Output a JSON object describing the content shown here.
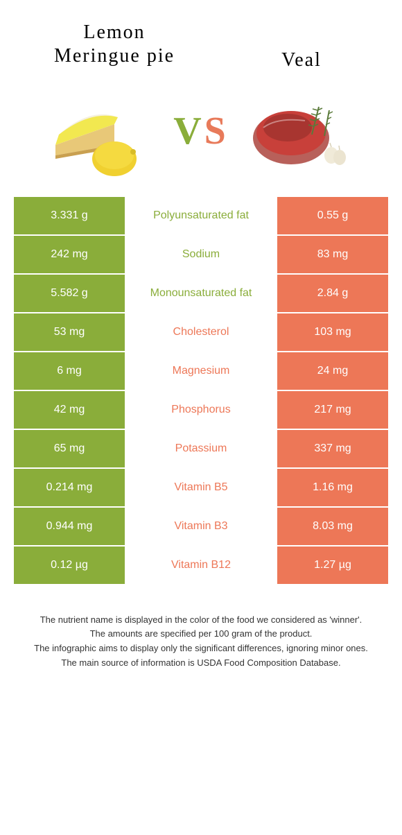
{
  "header": {
    "left_title": "Lemon Meringue pie",
    "right_title": "Veal",
    "vs_left": "V",
    "vs_right": "S"
  },
  "colors": {
    "left": "#8aad3a",
    "right": "#ed7757",
    "left_title": "#333333",
    "right_title": "#333333"
  },
  "rows": [
    {
      "left": "3.331 g",
      "label": "Polyunsaturated fat",
      "right": "0.55 g",
      "winner": "left"
    },
    {
      "left": "242 mg",
      "label": "Sodium",
      "right": "83 mg",
      "winner": "left"
    },
    {
      "left": "5.582 g",
      "label": "Monounsaturated fat",
      "right": "2.84 g",
      "winner": "left"
    },
    {
      "left": "53 mg",
      "label": "Cholesterol",
      "right": "103 mg",
      "winner": "right"
    },
    {
      "left": "6 mg",
      "label": "Magnesium",
      "right": "24 mg",
      "winner": "right"
    },
    {
      "left": "42 mg",
      "label": "Phosphorus",
      "right": "217 mg",
      "winner": "right"
    },
    {
      "left": "65 mg",
      "label": "Potassium",
      "right": "337 mg",
      "winner": "right"
    },
    {
      "left": "0.214 mg",
      "label": "Vitamin B5",
      "right": "1.16 mg",
      "winner": "right"
    },
    {
      "left": "0.944 mg",
      "label": "Vitamin B3",
      "right": "8.03 mg",
      "winner": "right"
    },
    {
      "left": "0.12 µg",
      "label": "Vitamin B12",
      "right": "1.27 µg",
      "winner": "right"
    }
  ],
  "footnotes": [
    "The nutrient name is displayed in the color of the food we considered as 'winner'.",
    "The amounts are specified per 100 gram of the product.",
    "The infographic aims to display only the significant differences, ignoring minor ones.",
    "The main source of information is USDA Food Composition Database."
  ]
}
